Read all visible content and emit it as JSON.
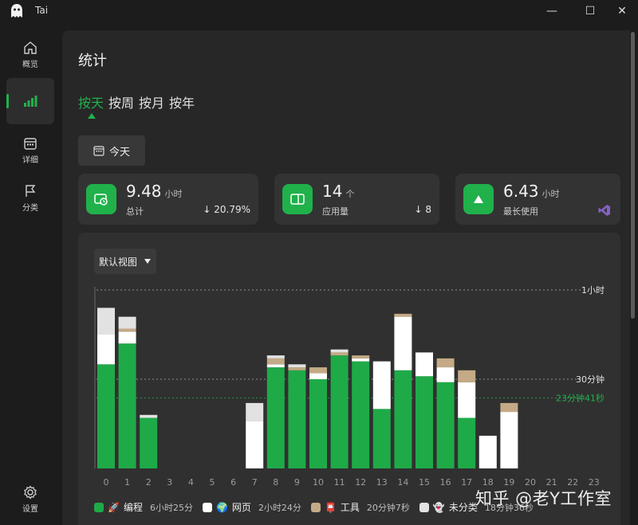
{
  "app": {
    "title": "Tai"
  },
  "window_controls": {
    "minimize": "—",
    "maximize": "☐",
    "close": "✕"
  },
  "sidebar": {
    "items": [
      {
        "label": "概览",
        "icon": "home-icon"
      },
      {
        "label": "",
        "icon": "stats-bars-icon",
        "active": true
      },
      {
        "label": "详细",
        "icon": "calendar-icon"
      },
      {
        "label": "分类",
        "icon": "flag-icon"
      }
    ],
    "settings_label": "设置"
  },
  "page": {
    "title": "统计"
  },
  "tabs": [
    "按天",
    "按周",
    "按月",
    "按年"
  ],
  "active_tab": "按天",
  "today_button": {
    "label": "今天",
    "icon": "calendar-icon"
  },
  "cards": [
    {
      "value": "9.48",
      "unit": "小时",
      "label": "总计",
      "change": "↓ 20.79%",
      "icon": "clock-icon"
    },
    {
      "value": "14",
      "unit": "个",
      "label": "应用量",
      "change": "↓ 8",
      "icon": "app-window-icon"
    },
    {
      "value": "6.43",
      "unit": "小时",
      "label": "最长使用",
      "icon": "up-triangle-icon",
      "app_icon": "visual-studio-icon"
    }
  ],
  "view_select": {
    "value": "默认视图"
  },
  "colors": {
    "accent": "#22b14c",
    "coding": "#1faa48",
    "web": "#ffffff",
    "tools": "#c4aa86",
    "uncategorized": "#e2e2e2"
  },
  "chart_data": {
    "type": "bar",
    "stacked": true,
    "categories": [
      "0",
      "1",
      "2",
      "3",
      "4",
      "5",
      "6",
      "7",
      "8",
      "9",
      "10",
      "11",
      "12",
      "13",
      "14",
      "15",
      "16",
      "17",
      "18",
      "19",
      "20",
      "21",
      "22",
      "23"
    ],
    "unit": "minutes",
    "ylim": [
      0,
      60
    ],
    "series": [
      {
        "name": "编程",
        "color": "#1faa48",
        "values": [
          35,
          42,
          17,
          0,
          0,
          0,
          0,
          0,
          34,
          33,
          30,
          38,
          36,
          20,
          33,
          31,
          29,
          17,
          0,
          0,
          0,
          0,
          0,
          0
        ]
      },
      {
        "name": "网页",
        "color": "#ffffff",
        "values": [
          10,
          4,
          0,
          0,
          0,
          0,
          0,
          16,
          1,
          0,
          2,
          0,
          1,
          16,
          18,
          8,
          5,
          12,
          11,
          19,
          0,
          0,
          0,
          0
        ]
      },
      {
        "name": "工具",
        "color": "#c4aa86",
        "values": [
          0,
          1,
          0,
          0,
          0,
          0,
          0,
          0,
          2,
          1,
          2,
          1,
          1,
          0,
          1,
          0,
          3,
          4,
          0,
          3,
          0,
          0,
          0,
          0
        ]
      },
      {
        "name": "未分类",
        "color": "#e2e2e2",
        "values": [
          9,
          4,
          1,
          0,
          0,
          0,
          0,
          6,
          1,
          1,
          0,
          1,
          0,
          0,
          0,
          0,
          0,
          0,
          0,
          0,
          0,
          0,
          0,
          0
        ]
      }
    ],
    "reference_lines": [
      {
        "label": "1小时",
        "value": 60
      },
      {
        "label": "30分钟",
        "value": 30
      },
      {
        "label": "23分钟41秒",
        "value": 23.68,
        "color": "#22b14c"
      }
    ],
    "legend": [
      {
        "name": "编程",
        "time": "6小时25分",
        "emoji": "🚀"
      },
      {
        "name": "网页",
        "time": "2小时24分",
        "emoji": "🌍"
      },
      {
        "name": "工具",
        "time": "20分钟7秒",
        "emoji": "📮"
      },
      {
        "name": "未分类",
        "time": "18分钟36秒",
        "emoji": "👻"
      }
    ]
  },
  "watermark": "知乎 @老Y工作室"
}
